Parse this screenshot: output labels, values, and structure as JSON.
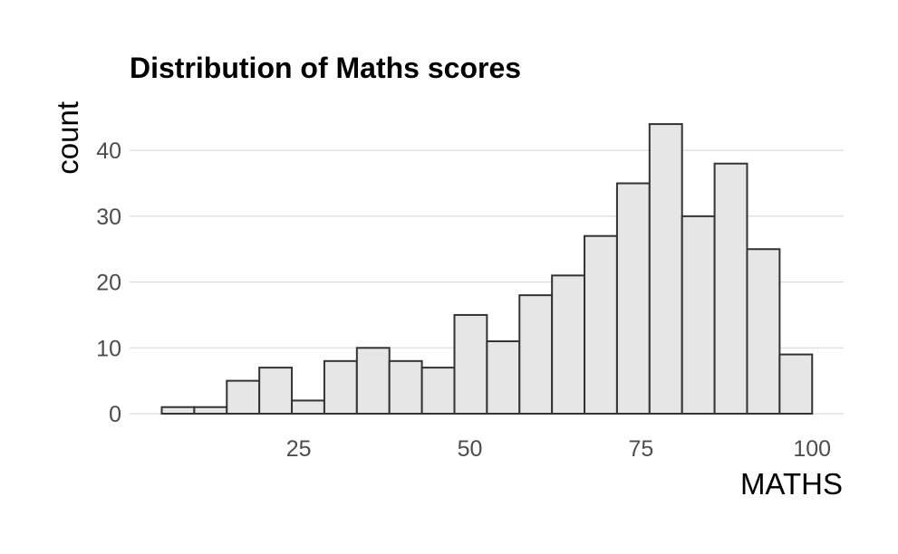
{
  "chart_data": {
    "type": "bar",
    "title": "Distribution of Maths scores",
    "xlabel": "MATHS",
    "ylabel": "count",
    "bin_width": 4.75,
    "bins": [
      {
        "x_start": 5.0,
        "x_end": 9.75,
        "count": 1
      },
      {
        "x_start": 9.75,
        "x_end": 14.5,
        "count": 1
      },
      {
        "x_start": 14.5,
        "x_end": 19.25,
        "count": 5
      },
      {
        "x_start": 19.25,
        "x_end": 24.0,
        "count": 7
      },
      {
        "x_start": 24.0,
        "x_end": 28.75,
        "count": 2
      },
      {
        "x_start": 28.75,
        "x_end": 33.5,
        "count": 8
      },
      {
        "x_start": 33.5,
        "x_end": 38.25,
        "count": 10
      },
      {
        "x_start": 38.25,
        "x_end": 43.0,
        "count": 8
      },
      {
        "x_start": 43.0,
        "x_end": 47.75,
        "count": 7
      },
      {
        "x_start": 47.75,
        "x_end": 52.5,
        "count": 15
      },
      {
        "x_start": 52.5,
        "x_end": 57.25,
        "count": 11
      },
      {
        "x_start": 57.25,
        "x_end": 62.0,
        "count": 18
      },
      {
        "x_start": 62.0,
        "x_end": 66.75,
        "count": 21
      },
      {
        "x_start": 66.75,
        "x_end": 71.5,
        "count": 27
      },
      {
        "x_start": 71.5,
        "x_end": 76.25,
        "count": 35
      },
      {
        "x_start": 76.25,
        "x_end": 81.0,
        "count": 44
      },
      {
        "x_start": 81.0,
        "x_end": 85.75,
        "count": 30
      },
      {
        "x_start": 85.75,
        "x_end": 90.5,
        "count": 38
      },
      {
        "x_start": 90.5,
        "x_end": 95.25,
        "count": 25
      },
      {
        "x_start": 95.25,
        "x_end": 100.0,
        "count": 9
      }
    ],
    "x_ticks": [
      25,
      50,
      75,
      100
    ],
    "y_ticks": [
      0,
      10,
      20,
      30,
      40
    ],
    "xlim": [
      0.3,
      104.6
    ],
    "ylim": [
      0,
      48
    ],
    "grid": "horizontal-major",
    "legend": "none",
    "bar_fill": "#e6e6e6",
    "bar_outline": "#333333",
    "grid_color": "#d3d3d3"
  }
}
